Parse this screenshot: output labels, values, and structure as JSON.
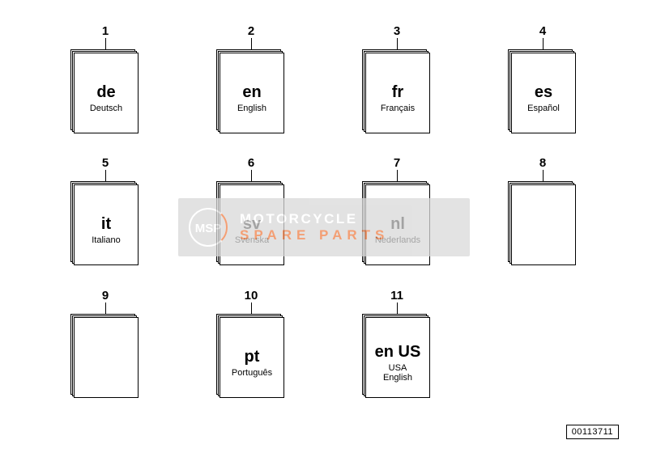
{
  "items": [
    {
      "num": "1",
      "code": "de",
      "lang": "Deutsch"
    },
    {
      "num": "2",
      "code": "en",
      "lang": "English"
    },
    {
      "num": "3",
      "code": "fr",
      "lang": "Français"
    },
    {
      "num": "4",
      "code": "es",
      "lang": "Español"
    },
    {
      "num": "5",
      "code": "it",
      "lang": "Italiano"
    },
    {
      "num": "6",
      "code": "sv",
      "lang": "Svenska"
    },
    {
      "num": "7",
      "code": "nl",
      "lang": "Nederlands"
    },
    {
      "num": "8",
      "code": "",
      "lang": ""
    },
    {
      "num": "9",
      "code": "",
      "lang": ""
    },
    {
      "num": "10",
      "code": "pt",
      "lang": "Português"
    },
    {
      "num": "11",
      "code": "en US",
      "lang": "USA\nEnglish"
    }
  ],
  "part_number": "00113711",
  "watermark": {
    "line1": "MOTORCYCLE",
    "line2": "SPARE PARTS",
    "bg_color": "#d9d9d9",
    "text_color": "#ffffff",
    "accent_color": "#f08048"
  },
  "styling": {
    "page_bg": "#ffffff",
    "stroke": "#000000",
    "book_w": 86,
    "book_h": 108,
    "code_fontsize": 20,
    "lang_fontsize": 11,
    "num_fontsize": 15,
    "grid_cols": 4,
    "grid_rows": 3
  }
}
